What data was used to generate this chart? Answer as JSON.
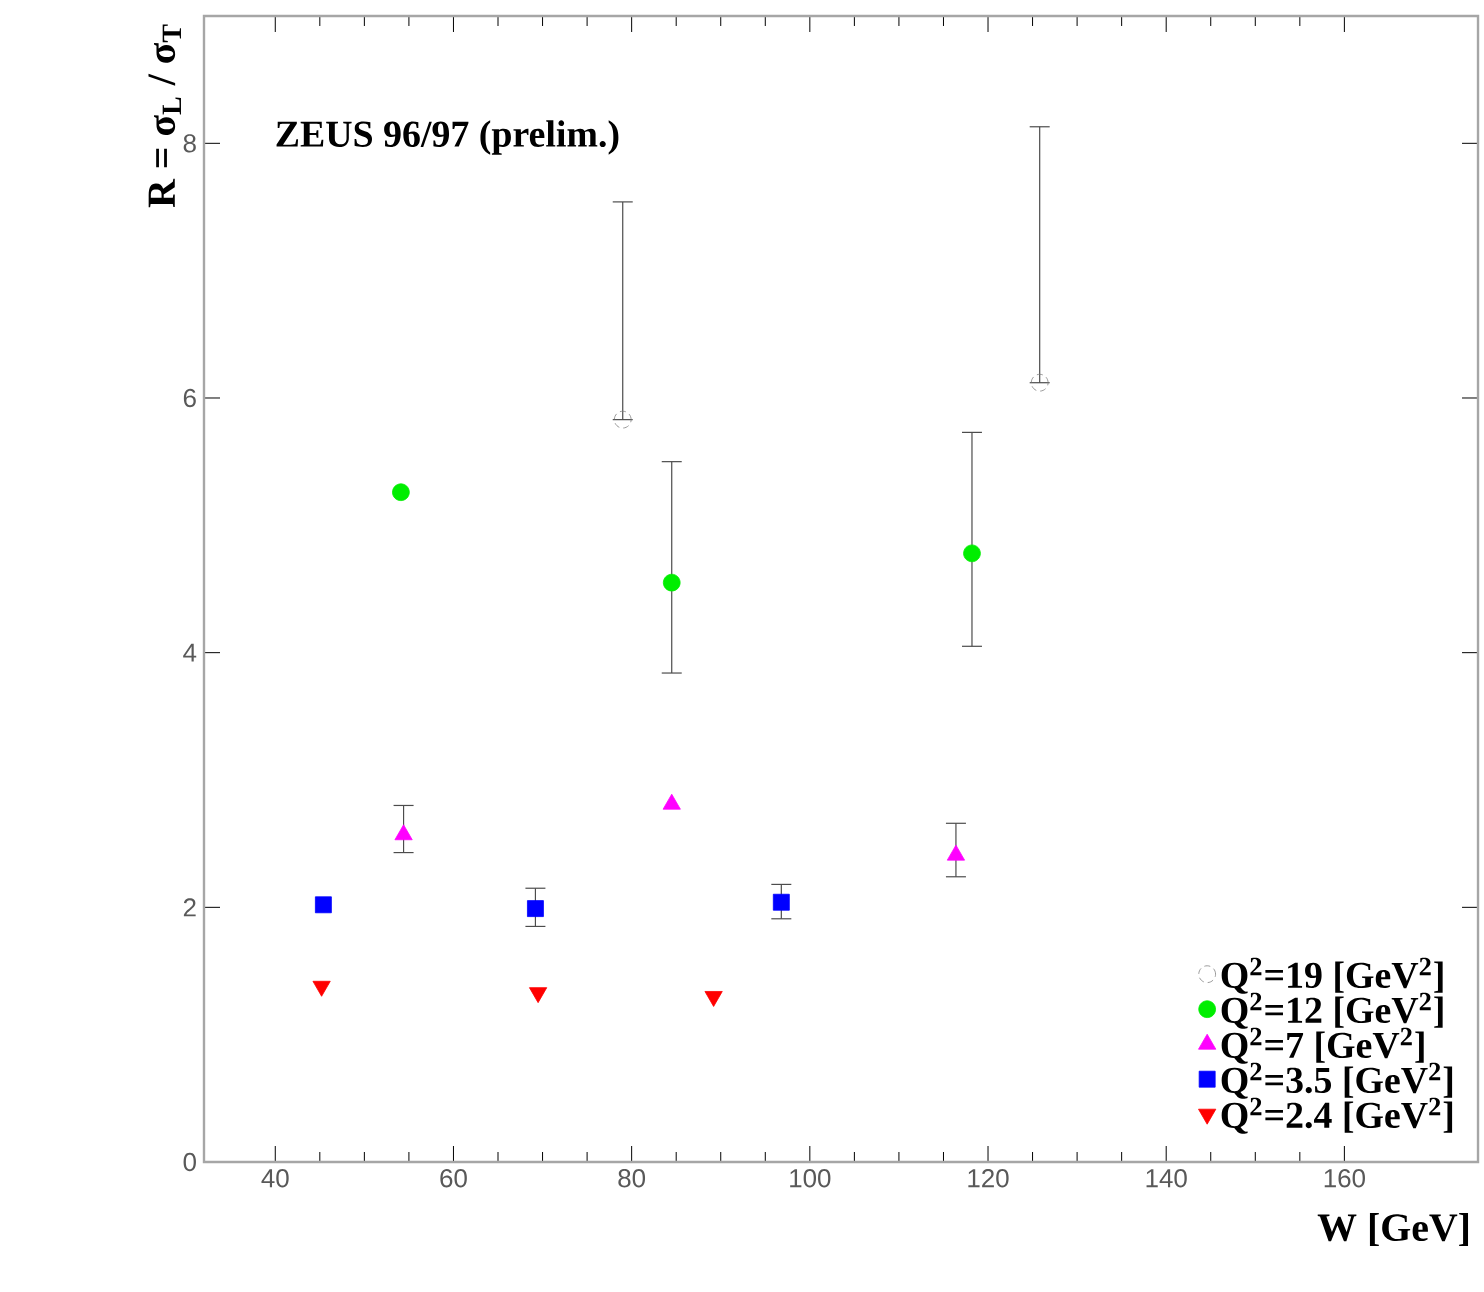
{
  "chart_data": {
    "type": "scatter",
    "xlabel": "W [GeV]",
    "ylabel": "R = σ$_{L}$ / σ$_{T}$",
    "annotations": [
      "ZEUS 96/97 (prelim.)"
    ],
    "xlim": [
      32,
      175
    ],
    "xticks": [
      40,
      60,
      80,
      100,
      120,
      140,
      160
    ],
    "ylim": [
      0,
      9
    ],
    "yticks": [
      0,
      2,
      4,
      6,
      8
    ],
    "grid": false,
    "legend": "bottom right",
    "series": [
      {
        "name": "Q$^{2}$=19 [GeV$^{2}$]",
        "color": "#808080",
        "marker": "open circle",
        "x": [
          79.0,
          125.8
        ],
        "values": [
          5.83,
          6.12
        ],
        "errors": [
          [
            5.83,
            7.54
          ],
          [
            6.12,
            8.13
          ]
        ]
      },
      {
        "name": "Q$^{2}$=12 [GeV$^{2}$]",
        "color": "#00ee00",
        "marker": "circle",
        "x": [
          54.1,
          84.5,
          118.2
        ],
        "values": [
          5.26,
          4.55,
          4.78
        ],
        "errors": [
          null,
          [
            3.84,
            5.5
          ],
          [
            4.05,
            5.73
          ]
        ]
      },
      {
        "name": "Q$^{2}$=7 [GeV$^{2}$]",
        "color": "#ff00ff",
        "marker": "triangle",
        "x": [
          54.4,
          84.5,
          116.4
        ],
        "values": [
          2.57,
          2.81,
          2.41
        ],
        "errors": [
          [
            2.43,
            2.8
          ],
          null,
          [
            2.24,
            2.66
          ]
        ]
      },
      {
        "name": "Q$^{2}$=3.5 [GeV$^{2}$]",
        "color": "#0000ff",
        "marker": "square",
        "x": [
          45.4,
          69.2,
          96.8
        ],
        "values": [
          2.02,
          1.99,
          2.04
        ],
        "errors": [
          null,
          [
            1.85,
            2.15
          ],
          [
            1.91,
            2.18
          ]
        ]
      },
      {
        "name": "Q$^{2}$=2.4 [GeV$^{2}$]",
        "color": "#ff0000",
        "marker": "triangle down",
        "x": [
          45.2,
          69.5,
          89.2
        ],
        "values": [
          1.38,
          1.33,
          1.3
        ]
      }
    ]
  }
}
